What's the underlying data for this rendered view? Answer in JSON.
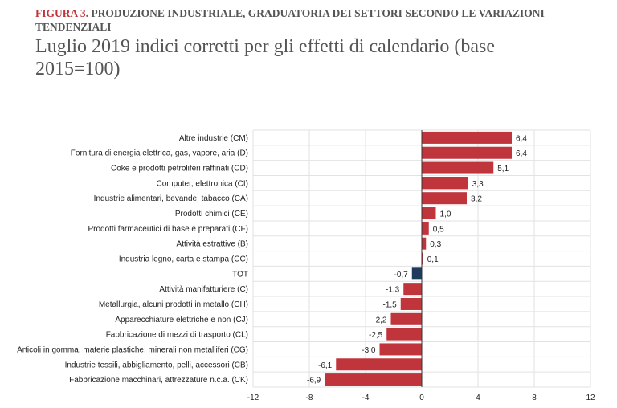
{
  "figure_label": "FIGURA 3.",
  "title": "PRODUZIONE INDUSTRIALE, GRADUATORIA DEI SETTORI SECONDO LE VARIAZIONI TENDENZIALI",
  "subtitle": "Luglio 2019 indici corretti per gli effetti di calendario (base 2015=100)",
  "chart_data": {
    "type": "bar",
    "orientation": "horizontal",
    "categories": [
      "Altre industrie (CM)",
      "Fornitura di energia elettrica, gas, vapore, aria (D)",
      "Coke e prodotti petroliferi raffinati (CD)",
      "Computer, elettronica (CI)",
      "Industrie alimentari, bevande, tabacco (CA)",
      "Prodotti chimici (CE)",
      "Prodotti farmaceutici di base e preparati (CF)",
      "Attività estrattive (B)",
      "Industria legno, carta e stampa (CC)",
      "TOT",
      "Attività manifatturiere (C)",
      "Metallurgia, alcuni prodotti in metallo (CH)",
      "Apparecchiature elettriche e non (CJ)",
      "Fabbricazione di mezzi di trasporto (CL)",
      "Articoli in gomma, materie plastiche, minerali non metalliferi (CG)",
      "Industrie tessili, abbigliamento, pelli, accessori (CB)",
      "Fabbricazione macchinari, attrezzature n.c.a. (CK)"
    ],
    "values": [
      6.4,
      6.4,
      5.1,
      3.3,
      3.2,
      1.0,
      0.5,
      0.3,
      0.1,
      -0.7,
      -1.3,
      -1.5,
      -2.2,
      -2.5,
      -3.0,
      -6.1,
      -6.9
    ],
    "data_labels": [
      "6,4",
      "6,4",
      "5,1",
      "3,3",
      "3,2",
      "1,0",
      "0,5",
      "0,3",
      "0,1",
      "-0,7",
      "-1,3",
      "-1,5",
      "-2,2",
      "-2,5",
      "-3,0",
      "-6,1",
      "-6,9"
    ],
    "xlim": [
      -12,
      12
    ],
    "xticks": [
      -12,
      -8,
      -4,
      0,
      4,
      8,
      12
    ],
    "xtick_labels": [
      "-12",
      "-8",
      "-4",
      "0",
      "4",
      "8",
      "12"
    ],
    "grid": true,
    "colors": {
      "default": "#c0343c",
      "highlight": "#1f3a5a"
    },
    "highlight_category": "TOT"
  }
}
